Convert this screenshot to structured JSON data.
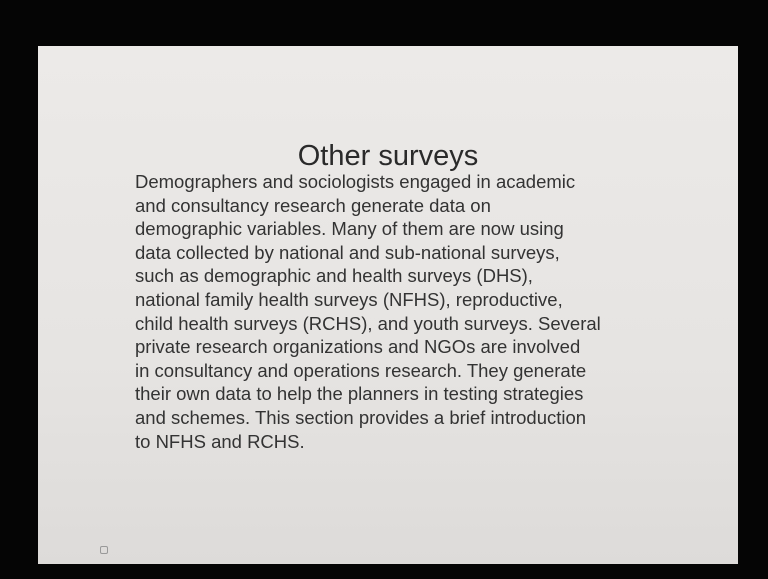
{
  "slide": {
    "title": "Other surveys",
    "body_lines": [
      "Demographers and sociologists engaged in academic",
      "and consultancy research generate data on",
      "demographic variables. Many of them are now using",
      "data collected by national and sub-national surveys,",
      "such as demographic and health surveys (DHS),",
      "national family health surveys (NFHS), reproductive,",
      "child health surveys (RCHS), and youth surveys. Several",
      "private research organizations and NGOs are involved",
      "in consultancy and operations research. They generate",
      "their own data to help the planners in testing strategies",
      "and schemes. This section provides a brief introduction",
      "to NFHS and RCHS."
    ]
  }
}
